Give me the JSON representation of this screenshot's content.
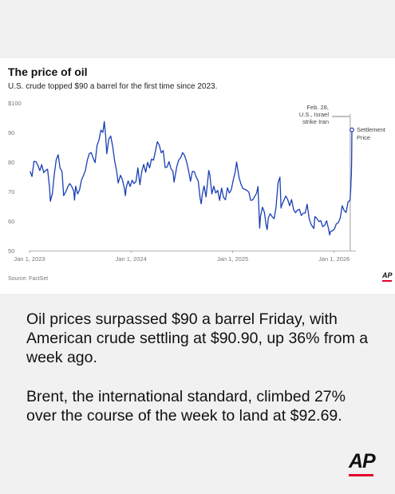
{
  "chart_data": {
    "type": "line",
    "title": "The price of oil",
    "subtitle": "U.S. crude topped $90 a barrel for the first time since 2023.",
    "source": "Source: FactSet",
    "ylim": [
      50,
      100
    ],
    "xlim": [
      "2023-01-01",
      "2026-03-06"
    ],
    "y_ticks": [
      "$100",
      "90",
      "80",
      "70",
      "60",
      "50"
    ],
    "y_tick_values": [
      100,
      90,
      80,
      70,
      60,
      50
    ],
    "x_ticks": [
      {
        "label": "Jan 1, 2023",
        "date": "2023-01-01"
      },
      {
        "label": "Jan 1, 2024",
        "date": "2024-01-01"
      },
      {
        "label": "Jan 1, 2025",
        "date": "2025-01-01"
      },
      {
        "label": "Jan 1, 2026",
        "date": "2026-01-01"
      }
    ],
    "grid": false,
    "line_color": "#1a3fb5",
    "event": {
      "date": "2026-02-28",
      "lines": [
        "Feb. 28,",
        "U.S., Israel",
        "strike Iran"
      ]
    },
    "endpoint_label": [
      "Settlement",
      "Price"
    ],
    "series": [
      {
        "points": [
          [
            "2023-01-03",
            76.9
          ],
          [
            "2023-01-10",
            75.1
          ],
          [
            "2023-01-17",
            80.2
          ],
          [
            "2023-01-24",
            80.1
          ],
          [
            "2023-01-31",
            78.9
          ],
          [
            "2023-02-07",
            77.1
          ],
          [
            "2023-02-14",
            79.1
          ],
          [
            "2023-02-21",
            76.4
          ],
          [
            "2023-02-28",
            77.1
          ],
          [
            "2023-03-07",
            77.6
          ],
          [
            "2023-03-14",
            71.3
          ],
          [
            "2023-03-17",
            66.7
          ],
          [
            "2023-03-24",
            69.3
          ],
          [
            "2023-03-31",
            75.7
          ],
          [
            "2023-04-07",
            80.7
          ],
          [
            "2023-04-14",
            82.5
          ],
          [
            "2023-04-21",
            77.9
          ],
          [
            "2023-04-28",
            76.8
          ],
          [
            "2023-05-04",
            68.6
          ],
          [
            "2023-05-12",
            70.0
          ],
          [
            "2023-05-19",
            71.7
          ],
          [
            "2023-05-26",
            72.7
          ],
          [
            "2023-06-02",
            71.7
          ],
          [
            "2023-06-09",
            70.2
          ],
          [
            "2023-06-12",
            67.1
          ],
          [
            "2023-06-16",
            71.8
          ],
          [
            "2023-06-23",
            69.2
          ],
          [
            "2023-06-30",
            70.6
          ],
          [
            "2023-07-07",
            73.9
          ],
          [
            "2023-07-14",
            75.4
          ],
          [
            "2023-07-21",
            77.1
          ],
          [
            "2023-07-28",
            80.6
          ],
          [
            "2023-08-04",
            82.8
          ],
          [
            "2023-08-11",
            83.2
          ],
          [
            "2023-08-18",
            81.3
          ],
          [
            "2023-08-25",
            79.8
          ],
          [
            "2023-09-01",
            85.6
          ],
          [
            "2023-09-08",
            87.5
          ],
          [
            "2023-09-15",
            90.8
          ],
          [
            "2023-09-22",
            90.0
          ],
          [
            "2023-09-27",
            93.7
          ],
          [
            "2023-10-02",
            88.8
          ],
          [
            "2023-10-06",
            82.8
          ],
          [
            "2023-10-13",
            87.7
          ],
          [
            "2023-10-20",
            88.8
          ],
          [
            "2023-10-27",
            85.5
          ],
          [
            "2023-11-03",
            80.5
          ],
          [
            "2023-11-10",
            77.2
          ],
          [
            "2023-11-16",
            72.9
          ],
          [
            "2023-11-24",
            75.5
          ],
          [
            "2023-12-01",
            74.1
          ],
          [
            "2023-12-08",
            71.2
          ],
          [
            "2023-12-12",
            68.6
          ],
          [
            "2023-12-15",
            71.4
          ],
          [
            "2023-12-22",
            73.6
          ],
          [
            "2023-12-29",
            71.7
          ],
          [
            "2024-01-05",
            73.8
          ],
          [
            "2024-01-12",
            72.7
          ],
          [
            "2024-01-19",
            73.4
          ],
          [
            "2024-01-26",
            78.0
          ],
          [
            "2024-02-02",
            72.3
          ],
          [
            "2024-02-09",
            76.8
          ],
          [
            "2024-02-16",
            79.2
          ],
          [
            "2024-02-23",
            76.5
          ],
          [
            "2024-03-01",
            79.9
          ],
          [
            "2024-03-08",
            78.0
          ],
          [
            "2024-03-15",
            81.0
          ],
          [
            "2024-03-22",
            80.6
          ],
          [
            "2024-03-28",
            83.2
          ],
          [
            "2024-04-05",
            86.9
          ],
          [
            "2024-04-12",
            85.7
          ],
          [
            "2024-04-19",
            83.1
          ],
          [
            "2024-04-26",
            83.9
          ],
          [
            "2024-05-03",
            78.1
          ],
          [
            "2024-05-10",
            78.3
          ],
          [
            "2024-05-17",
            80.1
          ],
          [
            "2024-05-24",
            77.7
          ],
          [
            "2024-05-31",
            76.9
          ],
          [
            "2024-06-04",
            73.2
          ],
          [
            "2024-06-14",
            78.5
          ],
          [
            "2024-06-21",
            80.7
          ],
          [
            "2024-06-28",
            81.5
          ],
          [
            "2024-07-05",
            83.2
          ],
          [
            "2024-07-12",
            82.2
          ],
          [
            "2024-07-19",
            80.1
          ],
          [
            "2024-07-26",
            77.2
          ],
          [
            "2024-08-02",
            73.5
          ],
          [
            "2024-08-09",
            76.8
          ],
          [
            "2024-08-16",
            76.7
          ],
          [
            "2024-08-23",
            74.8
          ],
          [
            "2024-08-30",
            73.6
          ],
          [
            "2024-09-06",
            67.7
          ],
          [
            "2024-09-10",
            65.8
          ],
          [
            "2024-09-13",
            68.7
          ],
          [
            "2024-09-20",
            71.9
          ],
          [
            "2024-09-27",
            68.2
          ],
          [
            "2024-10-04",
            74.4
          ],
          [
            "2024-10-07",
            77.1
          ],
          [
            "2024-10-11",
            75.6
          ],
          [
            "2024-10-18",
            69.2
          ],
          [
            "2024-10-25",
            71.8
          ],
          [
            "2024-11-01",
            69.5
          ],
          [
            "2024-11-08",
            70.4
          ],
          [
            "2024-11-15",
            67.0
          ],
          [
            "2024-11-22",
            71.2
          ],
          [
            "2024-11-29",
            68.0
          ],
          [
            "2024-12-06",
            67.2
          ],
          [
            "2024-12-13",
            71.3
          ],
          [
            "2024-12-20",
            69.5
          ],
          [
            "2024-12-27",
            70.6
          ],
          [
            "2025-01-03",
            73.9
          ],
          [
            "2025-01-10",
            76.6
          ],
          [
            "2025-01-15",
            80.0
          ],
          [
            "2025-01-24",
            74.7
          ],
          [
            "2025-01-31",
            72.5
          ],
          [
            "2025-02-07",
            71.0
          ],
          [
            "2025-02-14",
            70.7
          ],
          [
            "2025-02-21",
            70.4
          ],
          [
            "2025-02-28",
            69.8
          ],
          [
            "2025-03-07",
            67.0
          ],
          [
            "2025-03-14",
            67.2
          ],
          [
            "2025-03-21",
            68.3
          ],
          [
            "2025-03-28",
            69.4
          ],
          [
            "2025-04-02",
            71.7
          ],
          [
            "2025-04-08",
            57.6
          ],
          [
            "2025-04-11",
            61.5
          ],
          [
            "2025-04-18",
            64.7
          ],
          [
            "2025-04-25",
            63.0
          ],
          [
            "2025-05-02",
            58.3
          ],
          [
            "2025-05-05",
            57.1
          ],
          [
            "2025-05-09",
            61.0
          ],
          [
            "2025-05-16",
            62.5
          ],
          [
            "2025-05-23",
            61.5
          ],
          [
            "2025-05-30",
            60.8
          ],
          [
            "2025-06-06",
            64.6
          ],
          [
            "2025-06-13",
            72.9
          ],
          [
            "2025-06-20",
            74.9
          ],
          [
            "2025-06-24",
            64.4
          ],
          [
            "2025-06-27",
            65.5
          ],
          [
            "2025-07-04",
            67.0
          ],
          [
            "2025-07-11",
            68.5
          ],
          [
            "2025-07-18",
            67.3
          ],
          [
            "2025-07-25",
            65.2
          ],
          [
            "2025-08-01",
            67.3
          ],
          [
            "2025-08-08",
            63.9
          ],
          [
            "2025-08-15",
            62.8
          ],
          [
            "2025-08-22",
            63.7
          ],
          [
            "2025-08-29",
            64.0
          ],
          [
            "2025-09-05",
            61.9
          ],
          [
            "2025-09-12",
            62.7
          ],
          [
            "2025-09-19",
            62.7
          ],
          [
            "2025-09-26",
            65.7
          ],
          [
            "2025-10-03",
            60.9
          ],
          [
            "2025-10-10",
            58.9
          ],
          [
            "2025-10-20",
            57.5
          ],
          [
            "2025-10-24",
            61.5
          ],
          [
            "2025-10-31",
            60.9
          ],
          [
            "2025-11-07",
            59.8
          ],
          [
            "2025-11-14",
            60.1
          ],
          [
            "2025-11-21",
            58.1
          ],
          [
            "2025-11-28",
            58.6
          ],
          [
            "2025-12-05",
            60.1
          ],
          [
            "2025-12-12",
            57.4
          ],
          [
            "2025-12-16",
            55.3
          ],
          [
            "2025-12-19",
            56.5
          ],
          [
            "2025-12-26",
            56.7
          ],
          [
            "2026-01-02",
            57.3
          ],
          [
            "2026-01-09",
            59.1
          ],
          [
            "2026-01-16",
            59.4
          ],
          [
            "2026-01-23",
            61.1
          ],
          [
            "2026-01-30",
            65.2
          ],
          [
            "2026-02-06",
            63.6
          ],
          [
            "2026-02-13",
            62.9
          ],
          [
            "2026-02-20",
            66.4
          ],
          [
            "2026-02-27",
            67.0
          ],
          [
            "2026-03-02",
            71.2
          ],
          [
            "2026-03-03",
            74.6
          ],
          [
            "2026-03-04",
            75.3
          ],
          [
            "2026-03-05",
            81.0
          ],
          [
            "2026-03-06",
            90.9
          ]
        ]
      }
    ]
  },
  "article": {
    "paragraph_1": "Oil prices surpassed $90 a barrel Friday, with American crude settling at $90.90, up 36% from a week ago.",
    "paragraph_2": "Brent, the international standard, climbed 27% over the course of the week to land at $92.69."
  },
  "chart_logo_text": "AP",
  "footer_logo_text": "AP"
}
